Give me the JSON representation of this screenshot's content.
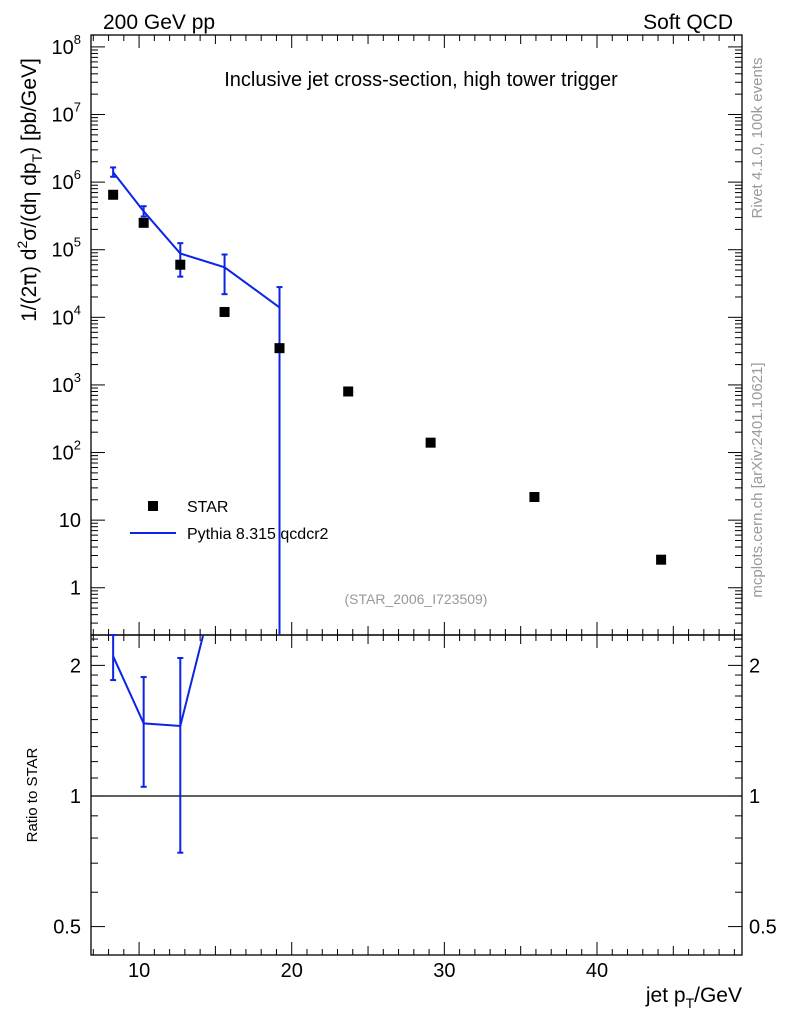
{
  "header": {
    "left": "200 GeV pp",
    "right": "Soft QCD"
  },
  "side": {
    "rivet": "Rivet 4.1.0,  100k events",
    "mcplots": "mcplots.cern.ch [arXiv:2401.10621]"
  },
  "colors": {
    "mc": "#0b24e6",
    "data": "#000000",
    "tag": "#999999"
  },
  "chart_data": [
    {
      "type": "scatter",
      "title": "Inclusive jet cross-section, high tower trigger",
      "analysis_tag": "(STAR_2006_I723509)",
      "ylabel_parts": {
        "p1": "1/(2",
        "pi": "π",
        "p2": ")   d",
        "sup2": "2",
        "p3": "σ/(dη dp",
        "subT": "T",
        "p4": ") [pb/GeV]"
      },
      "yscale": "log",
      "xlim": [
        6.85,
        49.5
      ],
      "ylim": [
        0.2,
        150000000
      ],
      "yticks_major": [
        {
          "value": 1,
          "base": "1",
          "exp": ""
        },
        {
          "value": 10,
          "base": "10",
          "exp": ""
        },
        {
          "value": 100,
          "base": "10",
          "exp": "2"
        },
        {
          "value": 1000,
          "base": "10",
          "exp": "3"
        },
        {
          "value": 10000,
          "base": "10",
          "exp": "4"
        },
        {
          "value": 100000,
          "base": "10",
          "exp": "5"
        },
        {
          "value": 1000000,
          "base": "10",
          "exp": "6"
        },
        {
          "value": 10000000,
          "base": "10",
          "exp": "7"
        },
        {
          "value": 100000000,
          "base": "10",
          "exp": "8"
        }
      ],
      "legend": {
        "placement": "lower-left",
        "data_label": "STAR",
        "mc_label": "Pythia 8.315 qcdcr2"
      },
      "series": [
        {
          "name": "STAR",
          "style": "markers",
          "x": [
            8.3,
            10.3,
            12.7,
            15.6,
            19.2,
            23.7,
            29.1,
            35.9,
            44.2
          ],
          "y": [
            650000,
            250000,
            60000,
            12000,
            3500,
            800,
            140,
            22,
            2.6
          ]
        },
        {
          "name": "Pythia 8.315 qcdcr2",
          "style": "line",
          "x": [
            8.3,
            10.3,
            12.7,
            15.6,
            19.2
          ],
          "y": [
            1400000,
            370000,
            88000,
            55000,
            14000
          ],
          "err_lo": [
            1200000,
            310000,
            40000,
            22000,
            0.2
          ],
          "err_hi": [
            1650000,
            440000,
            125000,
            85000,
            28000
          ]
        }
      ]
    },
    {
      "type": "line",
      "ylabel": "Ratio to STAR",
      "yscale": "log",
      "ylim": [
        0.43,
        2.35
      ],
      "xlim": [
        6.85,
        49.5
      ],
      "xlabel_parts": {
        "p1": "jet p",
        "subT": "T",
        "p2": "/GeV"
      },
      "xticks": [
        10,
        20,
        30,
        40
      ],
      "xtick_labels": [
        "10",
        "20",
        "30",
        "40"
      ],
      "yticks": [
        0.5,
        1,
        2
      ],
      "ytick_labels": [
        "0.5",
        "1",
        "2"
      ],
      "series": [
        {
          "name": "Pythia 8.315 qcdcr2 / STAR",
          "x": [
            8.3,
            10.3,
            12.7,
            14.2
          ],
          "y": [
            2.1,
            1.47,
            1.45,
            2.35
          ],
          "err_lo": [
            1.85,
            1.05,
            0.74,
            null
          ],
          "err_hi": [
            2.35,
            1.88,
            2.08,
            null
          ]
        }
      ]
    }
  ]
}
